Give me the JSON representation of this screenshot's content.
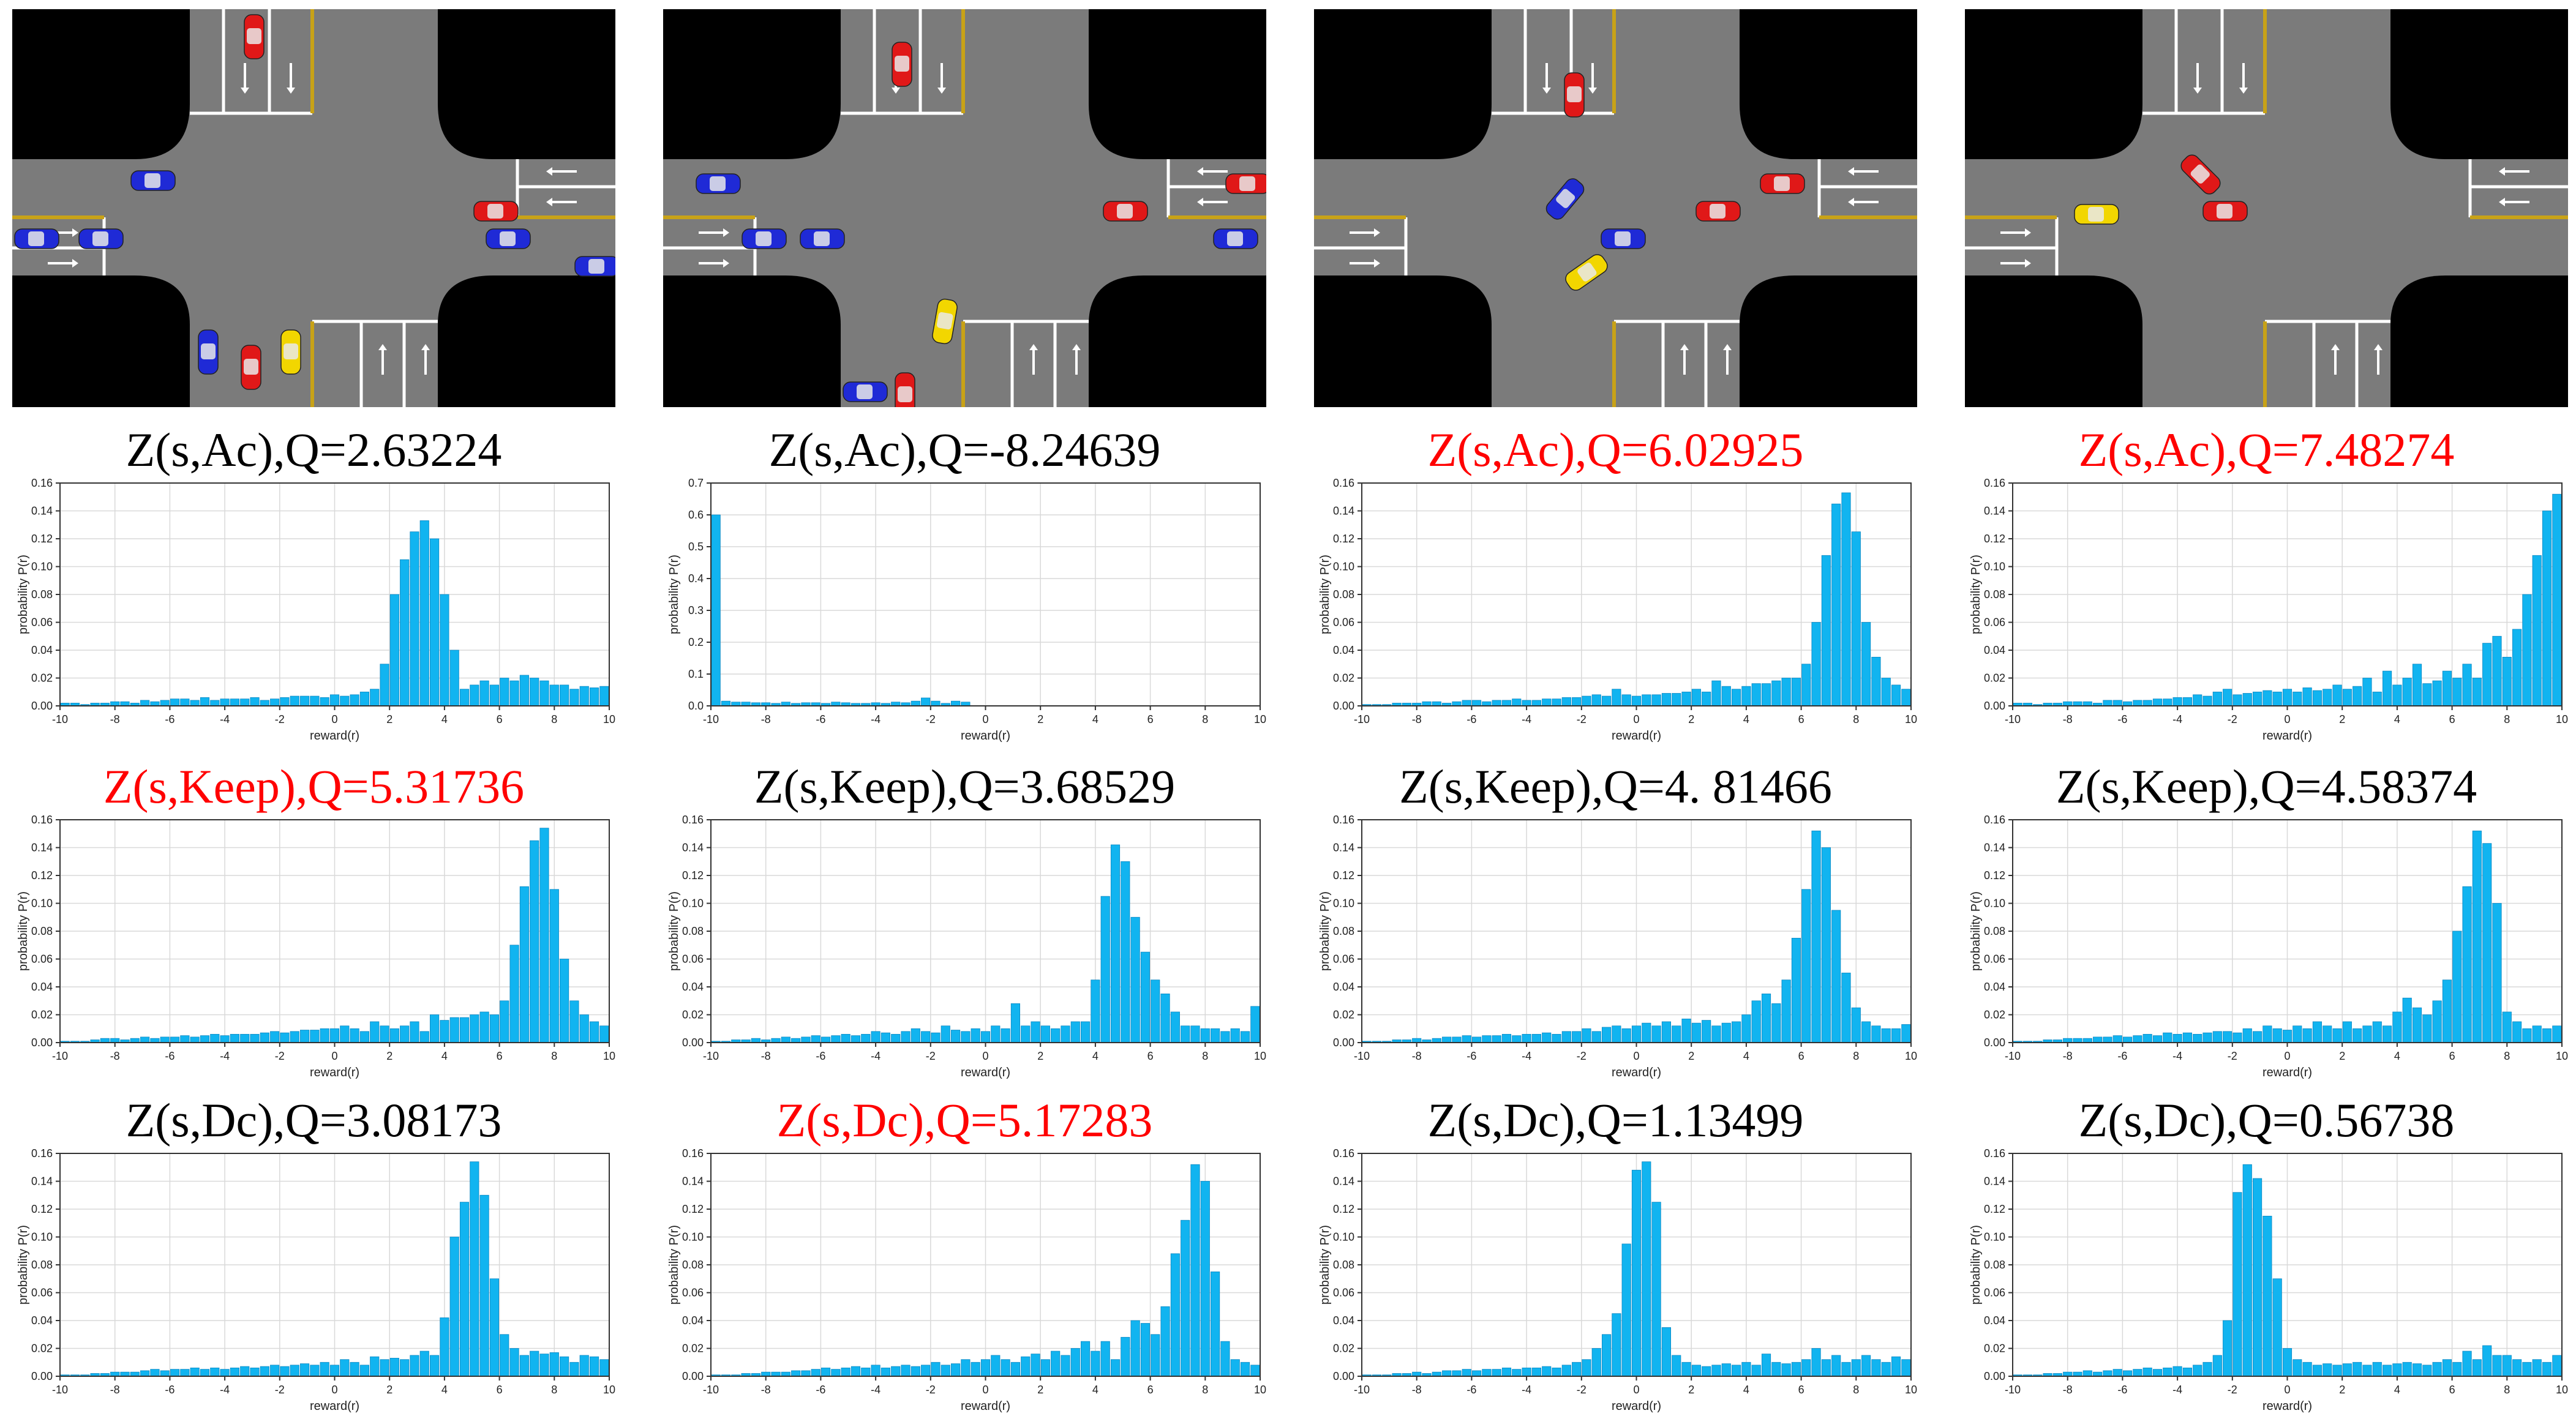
{
  "colors": {
    "bar": "#11b4f0",
    "bar_edge": "#0a86c2",
    "grid": "#d9d9d9",
    "title_default": "#000000",
    "title_highlight": "#ff0000",
    "road": "#7b7b7b",
    "block": "#000000",
    "lane_line": "#ffffff",
    "center_line": "#c8a217",
    "car_blue": "#1f2ad6",
    "car_red": "#e01818",
    "car_yellow": "#f2d600"
  },
  "columns": [
    {
      "scene_icon": "intersection-scene-1",
      "titles": [
        {
          "text": "Z(s,Ac),Q=2.63224",
          "highlight": false
        },
        {
          "text": "Z(s,Keep),Q=5.31736",
          "highlight": true
        },
        {
          "text": "Z(s,Dc),Q=3.08173",
          "highlight": false
        }
      ]
    },
    {
      "scene_icon": "intersection-scene-2",
      "titles": [
        {
          "text": "Z(s,Ac),Q=-8.24639",
          "highlight": false
        },
        {
          "text": "Z(s,Keep),Q=3.68529",
          "highlight": false
        },
        {
          "text": "Z(s,Dc),Q=5.17283",
          "highlight": true
        }
      ]
    },
    {
      "scene_icon": "intersection-scene-3",
      "titles": [
        {
          "text": "Z(s,Ac),Q=6.02925",
          "highlight": true
        },
        {
          "text": "Z(s,Keep),Q=4. 81466",
          "highlight": false
        },
        {
          "text": "Z(s,Dc),Q=1.13499",
          "highlight": false
        }
      ]
    },
    {
      "scene_icon": "intersection-scene-4",
      "titles": [
        {
          "text": "Z(s,Ac),Q=7.48274",
          "highlight": true
        },
        {
          "text": "Z(s,Keep),Q=4.58374",
          "highlight": false
        },
        {
          "text": "Z(s,Dc),Q=0.56738",
          "highlight": false
        }
      ]
    }
  ],
  "chart_data": [
    {
      "type": "bar",
      "panel": "col1-row1",
      "title": "Z(s,Ac),Q=2.63224",
      "xlabel": "reward(r)",
      "ylabel": "probability P(r)",
      "xlim": [
        -10,
        10
      ],
      "ylim": [
        0,
        0.16
      ],
      "x_ticks": [
        -10,
        -8,
        -6,
        -4,
        -2,
        0,
        2,
        4,
        6,
        8,
        10
      ],
      "y_ticks": [
        0.0,
        0.02,
        0.04,
        0.06,
        0.08,
        0.1,
        0.12,
        0.14,
        0.16
      ],
      "grid": true,
      "values": [
        0.002,
        0.002,
        0.001,
        0.002,
        0.002,
        0.003,
        0.003,
        0.002,
        0.004,
        0.003,
        0.004,
        0.005,
        0.005,
        0.004,
        0.006,
        0.004,
        0.005,
        0.005,
        0.005,
        0.006,
        0.004,
        0.005,
        0.006,
        0.007,
        0.007,
        0.007,
        0.006,
        0.008,
        0.007,
        0.008,
        0.01,
        0.012,
        0.03,
        0.08,
        0.105,
        0.125,
        0.133,
        0.12,
        0.08,
        0.04,
        0.012,
        0.015,
        0.018,
        0.015,
        0.02,
        0.018,
        0.022,
        0.02,
        0.018,
        0.015,
        0.015,
        0.012,
        0.014,
        0.013,
        0.014
      ]
    },
    {
      "type": "bar",
      "panel": "col2-row1",
      "title": "Z(s,Ac),Q=-8.24639",
      "xlabel": "reward(r)",
      "ylabel": "probability P(r)",
      "xlim": [
        -10,
        10
      ],
      "ylim": [
        0,
        0.7
      ],
      "x_ticks": [
        -10,
        -8,
        -6,
        -4,
        -2,
        0,
        2,
        4,
        6,
        8,
        10
      ],
      "y_ticks": [
        0.0,
        0.1,
        0.2,
        0.3,
        0.4,
        0.5,
        0.6,
        0.7
      ],
      "grid": true,
      "values": [
        0.6,
        0.015,
        0.012,
        0.012,
        0.01,
        0.01,
        0.008,
        0.012,
        0.008,
        0.01,
        0.01,
        0.008,
        0.012,
        0.01,
        0.008,
        0.008,
        0.01,
        0.008,
        0.012,
        0.01,
        0.015,
        0.025,
        0.015,
        0.008,
        0.015,
        0.012
      ]
    },
    {
      "type": "bar",
      "panel": "col3-row1",
      "title": "Z(s,Ac),Q=6.02925",
      "xlabel": "reward(r)",
      "ylabel": "probability P(r)",
      "xlim": [
        -10,
        10
      ],
      "ylim": [
        0,
        0.16
      ],
      "x_ticks": [
        -10,
        -8,
        -6,
        -4,
        -2,
        0,
        2,
        4,
        6,
        8,
        10
      ],
      "y_ticks": [
        0.0,
        0.02,
        0.04,
        0.06,
        0.08,
        0.1,
        0.12,
        0.14,
        0.16
      ],
      "grid": true,
      "values": [
        0.001,
        0.001,
        0.001,
        0.002,
        0.002,
        0.002,
        0.003,
        0.003,
        0.002,
        0.003,
        0.004,
        0.004,
        0.003,
        0.004,
        0.004,
        0.005,
        0.004,
        0.004,
        0.005,
        0.005,
        0.006,
        0.006,
        0.007,
        0.008,
        0.007,
        0.012,
        0.008,
        0.007,
        0.008,
        0.008,
        0.009,
        0.009,
        0.01,
        0.012,
        0.01,
        0.018,
        0.014,
        0.012,
        0.014,
        0.016,
        0.016,
        0.018,
        0.02,
        0.02,
        0.03,
        0.06,
        0.108,
        0.145,
        0.153,
        0.125,
        0.06,
        0.035,
        0.02,
        0.015,
        0.012
      ]
    },
    {
      "type": "bar",
      "panel": "col4-row1",
      "title": "Z(s,Ac),Q=7.48274",
      "xlabel": "reward(r)",
      "ylabel": "probability P(r)",
      "xlim": [
        -10,
        10
      ],
      "ylim": [
        0,
        0.16
      ],
      "x_ticks": [
        -10,
        -8,
        -6,
        -4,
        -2,
        0,
        2,
        4,
        6,
        8,
        10
      ],
      "y_ticks": [
        0.0,
        0.02,
        0.04,
        0.06,
        0.08,
        0.1,
        0.12,
        0.14,
        0.16
      ],
      "grid": true,
      "values": [
        0.002,
        0.002,
        0.001,
        0.002,
        0.002,
        0.003,
        0.003,
        0.003,
        0.002,
        0.004,
        0.004,
        0.003,
        0.004,
        0.004,
        0.005,
        0.005,
        0.006,
        0.006,
        0.008,
        0.007,
        0.01,
        0.012,
        0.008,
        0.009,
        0.01,
        0.011,
        0.01,
        0.012,
        0.01,
        0.013,
        0.011,
        0.012,
        0.015,
        0.012,
        0.014,
        0.02,
        0.01,
        0.025,
        0.015,
        0.02,
        0.03,
        0.016,
        0.018,
        0.025,
        0.02,
        0.03,
        0.02,
        0.045,
        0.05,
        0.035,
        0.055,
        0.08,
        0.108,
        0.14,
        0.152
      ]
    },
    {
      "type": "bar",
      "panel": "col1-row2",
      "title": "Z(s,Keep),Q=5.31736",
      "xlabel": "reward(r)",
      "ylabel": "probability P(r)",
      "xlim": [
        -10,
        10
      ],
      "ylim": [
        0,
        0.16
      ],
      "x_ticks": [
        -10,
        -8,
        -6,
        -4,
        -2,
        0,
        2,
        4,
        6,
        8,
        10
      ],
      "y_ticks": [
        0.0,
        0.02,
        0.04,
        0.06,
        0.08,
        0.1,
        0.12,
        0.14,
        0.16
      ],
      "grid": true,
      "values": [
        0.001,
        0.001,
        0.001,
        0.002,
        0.003,
        0.003,
        0.002,
        0.003,
        0.004,
        0.003,
        0.004,
        0.004,
        0.005,
        0.004,
        0.005,
        0.006,
        0.005,
        0.006,
        0.006,
        0.006,
        0.007,
        0.008,
        0.007,
        0.008,
        0.009,
        0.009,
        0.01,
        0.01,
        0.012,
        0.01,
        0.008,
        0.015,
        0.012,
        0.01,
        0.012,
        0.015,
        0.008,
        0.02,
        0.016,
        0.018,
        0.018,
        0.02,
        0.022,
        0.02,
        0.03,
        0.07,
        0.112,
        0.145,
        0.154,
        0.11,
        0.06,
        0.03,
        0.02,
        0.015,
        0.012
      ]
    },
    {
      "type": "bar",
      "panel": "col2-row2",
      "title": "Z(s,Keep),Q=3.68529",
      "xlabel": "reward(r)",
      "ylabel": "probability P(r)",
      "xlim": [
        -10,
        10
      ],
      "ylim": [
        0,
        0.16
      ],
      "x_ticks": [
        -10,
        -8,
        -6,
        -4,
        -2,
        0,
        2,
        4,
        6,
        8,
        10
      ],
      "y_ticks": [
        0.0,
        0.02,
        0.04,
        0.06,
        0.08,
        0.1,
        0.12,
        0.14,
        0.16
      ],
      "grid": true,
      "values": [
        0.001,
        0.001,
        0.002,
        0.002,
        0.003,
        0.002,
        0.003,
        0.004,
        0.003,
        0.004,
        0.005,
        0.004,
        0.005,
        0.006,
        0.005,
        0.006,
        0.008,
        0.007,
        0.006,
        0.008,
        0.01,
        0.008,
        0.007,
        0.012,
        0.009,
        0.008,
        0.01,
        0.008,
        0.012,
        0.01,
        0.028,
        0.012,
        0.015,
        0.012,
        0.01,
        0.012,
        0.015,
        0.015,
        0.045,
        0.105,
        0.142,
        0.13,
        0.09,
        0.065,
        0.045,
        0.035,
        0.022,
        0.012,
        0.012,
        0.01,
        0.01,
        0.008,
        0.01,
        0.008,
        0.026
      ]
    },
    {
      "type": "bar",
      "panel": "col3-row2",
      "title": "Z(s,Keep),Q=4. 81466",
      "xlabel": "reward(r)",
      "ylabel": "probability P(r)",
      "xlim": [
        -10,
        10
      ],
      "ylim": [
        0,
        0.16
      ],
      "x_ticks": [
        -10,
        -8,
        -6,
        -4,
        -2,
        0,
        2,
        4,
        6,
        8,
        10
      ],
      "y_ticks": [
        0.0,
        0.02,
        0.04,
        0.06,
        0.08,
        0.1,
        0.12,
        0.14,
        0.16
      ],
      "grid": true,
      "values": [
        0.001,
        0.001,
        0.001,
        0.002,
        0.002,
        0.003,
        0.002,
        0.003,
        0.004,
        0.004,
        0.005,
        0.004,
        0.005,
        0.005,
        0.006,
        0.005,
        0.006,
        0.006,
        0.007,
        0.006,
        0.008,
        0.008,
        0.01,
        0.008,
        0.011,
        0.012,
        0.01,
        0.012,
        0.014,
        0.012,
        0.015,
        0.012,
        0.017,
        0.014,
        0.016,
        0.012,
        0.014,
        0.015,
        0.02,
        0.03,
        0.035,
        0.028,
        0.045,
        0.075,
        0.11,
        0.152,
        0.14,
        0.095,
        0.05,
        0.025,
        0.015,
        0.012,
        0.01,
        0.01,
        0.013
      ]
    },
    {
      "type": "bar",
      "panel": "col4-row2",
      "title": "Z(s,Keep),Q=4.58374",
      "xlabel": "reward(r)",
      "ylabel": "probability P(r)",
      "xlim": [
        -10,
        10
      ],
      "ylim": [
        0,
        0.16
      ],
      "x_ticks": [
        -10,
        -8,
        -6,
        -4,
        -2,
        0,
        2,
        4,
        6,
        8,
        10
      ],
      "y_ticks": [
        0.0,
        0.02,
        0.04,
        0.06,
        0.08,
        0.1,
        0.12,
        0.14,
        0.16
      ],
      "grid": true,
      "values": [
        0.001,
        0.001,
        0.001,
        0.002,
        0.002,
        0.003,
        0.003,
        0.003,
        0.004,
        0.004,
        0.005,
        0.004,
        0.005,
        0.006,
        0.005,
        0.007,
        0.006,
        0.007,
        0.006,
        0.007,
        0.008,
        0.008,
        0.007,
        0.01,
        0.008,
        0.012,
        0.01,
        0.009,
        0.012,
        0.01,
        0.015,
        0.012,
        0.01,
        0.015,
        0.01,
        0.012,
        0.015,
        0.012,
        0.022,
        0.032,
        0.025,
        0.02,
        0.03,
        0.045,
        0.08,
        0.112,
        0.152,
        0.143,
        0.1,
        0.022,
        0.015,
        0.01,
        0.012,
        0.01,
        0.012
      ]
    },
    {
      "type": "bar",
      "panel": "col1-row3",
      "title": "Z(s,Dc),Q=3.08173",
      "xlabel": "reward(r)",
      "ylabel": "probability P(r)",
      "xlim": [
        -10,
        10
      ],
      "ylim": [
        0,
        0.16
      ],
      "x_ticks": [
        -10,
        -8,
        -6,
        -4,
        -2,
        0,
        2,
        4,
        6,
        8,
        10
      ],
      "y_ticks": [
        0.0,
        0.02,
        0.04,
        0.06,
        0.08,
        0.1,
        0.12,
        0.14,
        0.16
      ],
      "grid": true,
      "values": [
        0.001,
        0.001,
        0.001,
        0.002,
        0.002,
        0.003,
        0.003,
        0.003,
        0.004,
        0.005,
        0.004,
        0.005,
        0.005,
        0.006,
        0.005,
        0.006,
        0.005,
        0.006,
        0.007,
        0.006,
        0.007,
        0.008,
        0.007,
        0.008,
        0.009,
        0.008,
        0.01,
        0.008,
        0.012,
        0.01,
        0.008,
        0.014,
        0.012,
        0.013,
        0.012,
        0.015,
        0.018,
        0.015,
        0.042,
        0.1,
        0.125,
        0.154,
        0.13,
        0.07,
        0.03,
        0.02,
        0.015,
        0.018,
        0.016,
        0.017,
        0.014,
        0.01,
        0.015,
        0.014,
        0.012
      ]
    },
    {
      "type": "bar",
      "panel": "col2-row3",
      "title": "Z(s,Dc),Q=5.17283",
      "xlabel": "reward(r)",
      "ylabel": "probability P(r)",
      "xlim": [
        -10,
        10
      ],
      "ylim": [
        0,
        0.16
      ],
      "x_ticks": [
        -10,
        -8,
        -6,
        -4,
        -2,
        0,
        2,
        4,
        6,
        8,
        10
      ],
      "y_ticks": [
        0.0,
        0.02,
        0.04,
        0.06,
        0.08,
        0.1,
        0.12,
        0.14,
        0.16
      ],
      "grid": true,
      "values": [
        0.001,
        0.001,
        0.001,
        0.002,
        0.002,
        0.003,
        0.003,
        0.003,
        0.004,
        0.004,
        0.005,
        0.006,
        0.005,
        0.006,
        0.007,
        0.006,
        0.008,
        0.006,
        0.007,
        0.008,
        0.007,
        0.008,
        0.01,
        0.008,
        0.009,
        0.012,
        0.01,
        0.012,
        0.015,
        0.012,
        0.01,
        0.014,
        0.016,
        0.012,
        0.018,
        0.015,
        0.02,
        0.025,
        0.018,
        0.025,
        0.012,
        0.028,
        0.04,
        0.038,
        0.03,
        0.05,
        0.088,
        0.112,
        0.152,
        0.14,
        0.075,
        0.025,
        0.012,
        0.01,
        0.008
      ]
    },
    {
      "type": "bar",
      "panel": "col3-row3",
      "title": "Z(s,Dc),Q=1.13499",
      "xlabel": "reward(r)",
      "ylabel": "probability P(r)",
      "xlim": [
        -10,
        10
      ],
      "ylim": [
        0,
        0.16
      ],
      "x_ticks": [
        -10,
        -8,
        -6,
        -4,
        -2,
        0,
        2,
        4,
        6,
        8,
        10
      ],
      "y_ticks": [
        0.0,
        0.02,
        0.04,
        0.06,
        0.08,
        0.1,
        0.12,
        0.14,
        0.16
      ],
      "grid": true,
      "values": [
        0.001,
        0.001,
        0.001,
        0.002,
        0.002,
        0.003,
        0.002,
        0.003,
        0.004,
        0.004,
        0.005,
        0.004,
        0.005,
        0.005,
        0.006,
        0.005,
        0.006,
        0.006,
        0.007,
        0.006,
        0.008,
        0.01,
        0.012,
        0.02,
        0.03,
        0.045,
        0.095,
        0.148,
        0.154,
        0.125,
        0.035,
        0.015,
        0.01,
        0.008,
        0.007,
        0.008,
        0.009,
        0.008,
        0.01,
        0.008,
        0.016,
        0.01,
        0.009,
        0.01,
        0.012,
        0.02,
        0.012,
        0.015,
        0.01,
        0.012,
        0.015,
        0.012,
        0.01,
        0.014,
        0.012
      ]
    },
    {
      "type": "bar",
      "panel": "col4-row3",
      "title": "Z(s,Dc),Q=0.56738",
      "xlabel": "reward(r)",
      "ylabel": "probability P(r)",
      "xlim": [
        -10,
        10
      ],
      "ylim": [
        0,
        0.16
      ],
      "x_ticks": [
        -10,
        -8,
        -6,
        -4,
        -2,
        0,
        2,
        4,
        6,
        8,
        10
      ],
      "y_ticks": [
        0.0,
        0.02,
        0.04,
        0.06,
        0.08,
        0.1,
        0.12,
        0.14,
        0.16
      ],
      "grid": true,
      "values": [
        0.001,
        0.001,
        0.001,
        0.002,
        0.002,
        0.003,
        0.003,
        0.004,
        0.003,
        0.004,
        0.005,
        0.004,
        0.005,
        0.006,
        0.005,
        0.006,
        0.007,
        0.006,
        0.008,
        0.01,
        0.015,
        0.04,
        0.132,
        0.152,
        0.142,
        0.115,
        0.07,
        0.02,
        0.012,
        0.01,
        0.008,
        0.009,
        0.008,
        0.009,
        0.01,
        0.008,
        0.01,
        0.008,
        0.009,
        0.01,
        0.009,
        0.008,
        0.01,
        0.012,
        0.01,
        0.018,
        0.012,
        0.022,
        0.015,
        0.015,
        0.012,
        0.01,
        0.012,
        0.01,
        0.015
      ]
    }
  ]
}
